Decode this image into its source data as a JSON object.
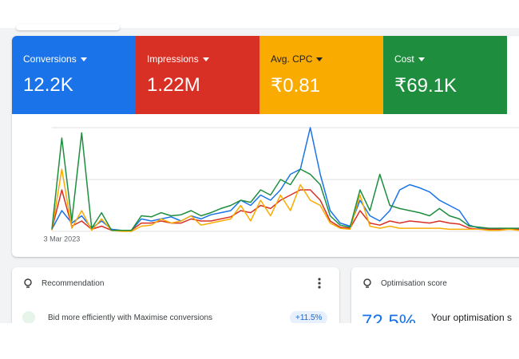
{
  "chart_data": {
    "type": "line",
    "categories": [
      null,
      "3 Mar 2023",
      null,
      null,
      null,
      null,
      null,
      null,
      null,
      null,
      null,
      null,
      null,
      null,
      null,
      null,
      null,
      null,
      null,
      null,
      null,
      null,
      null,
      null,
      null,
      null,
      null,
      null,
      null,
      null,
      null,
      null,
      null,
      null,
      null,
      null,
      null,
      null,
      null,
      null,
      null,
      null,
      null,
      null,
      null,
      null,
      null,
      null
    ],
    "ylim": [
      0,
      100
    ],
    "grid_lines": [
      0,
      50,
      100
    ],
    "grid": true,
    "series": [
      {
        "name": "Conversions",
        "total": "12.2K",
        "color": "#1a73e8",
        "values": [
          2,
          20,
          8,
          15,
          3,
          10,
          2,
          1,
          1,
          12,
          10,
          12,
          14,
          10,
          15,
          12,
          16,
          18,
          20,
          30,
          25,
          35,
          30,
          40,
          55,
          60,
          100,
          55,
          20,
          8,
          5,
          30,
          15,
          10,
          20,
          40,
          45,
          42,
          38,
          30,
          25,
          20,
          6,
          3,
          2,
          3,
          2,
          3
        ]
      },
      {
        "name": "Impressions",
        "total": "1.22M",
        "color": "#d93025",
        "values": [
          2,
          40,
          5,
          10,
          2,
          5,
          1,
          1,
          1,
          8,
          8,
          10,
          8,
          8,
          12,
          10,
          10,
          12,
          14,
          20,
          18,
          25,
          22,
          30,
          35,
          40,
          40,
          30,
          10,
          4,
          3,
          20,
          8,
          6,
          10,
          8,
          10,
          9,
          8,
          10,
          8,
          7,
          3,
          2,
          2,
          2,
          2,
          2
        ]
      },
      {
        "name": "Avg. CPC",
        "total": "₹0.81",
        "color": "#f9ab00",
        "values": [
          1,
          60,
          3,
          20,
          1,
          12,
          1,
          0,
          0,
          5,
          6,
          12,
          8,
          10,
          15,
          6,
          8,
          10,
          12,
          25,
          10,
          30,
          15,
          35,
          20,
          45,
          30,
          25,
          8,
          3,
          2,
          35,
          5,
          3,
          5,
          3,
          3,
          3,
          3,
          3,
          2,
          2,
          2,
          2,
          1,
          1,
          2,
          1
        ]
      },
      {
        "name": "Cost",
        "total": "₹69.1K",
        "color": "#1e8e3e",
        "values": [
          2,
          90,
          10,
          95,
          3,
          18,
          1,
          1,
          1,
          15,
          14,
          18,
          15,
          16,
          20,
          15,
          18,
          22,
          25,
          30,
          28,
          40,
          35,
          50,
          45,
          60,
          55,
          45,
          15,
          6,
          4,
          40,
          20,
          55,
          25,
          22,
          20,
          18,
          15,
          22,
          15,
          12,
          5,
          4,
          3,
          3,
          3,
          3
        ]
      }
    ]
  },
  "recommendation": {
    "title": "Recommendation",
    "item": "Bid more efficiently with Maximise conversions",
    "uplift": "+11.5%"
  },
  "optimisation": {
    "title": "Optimisation score",
    "score": "72.5%",
    "text": "Your optimisation s"
  }
}
